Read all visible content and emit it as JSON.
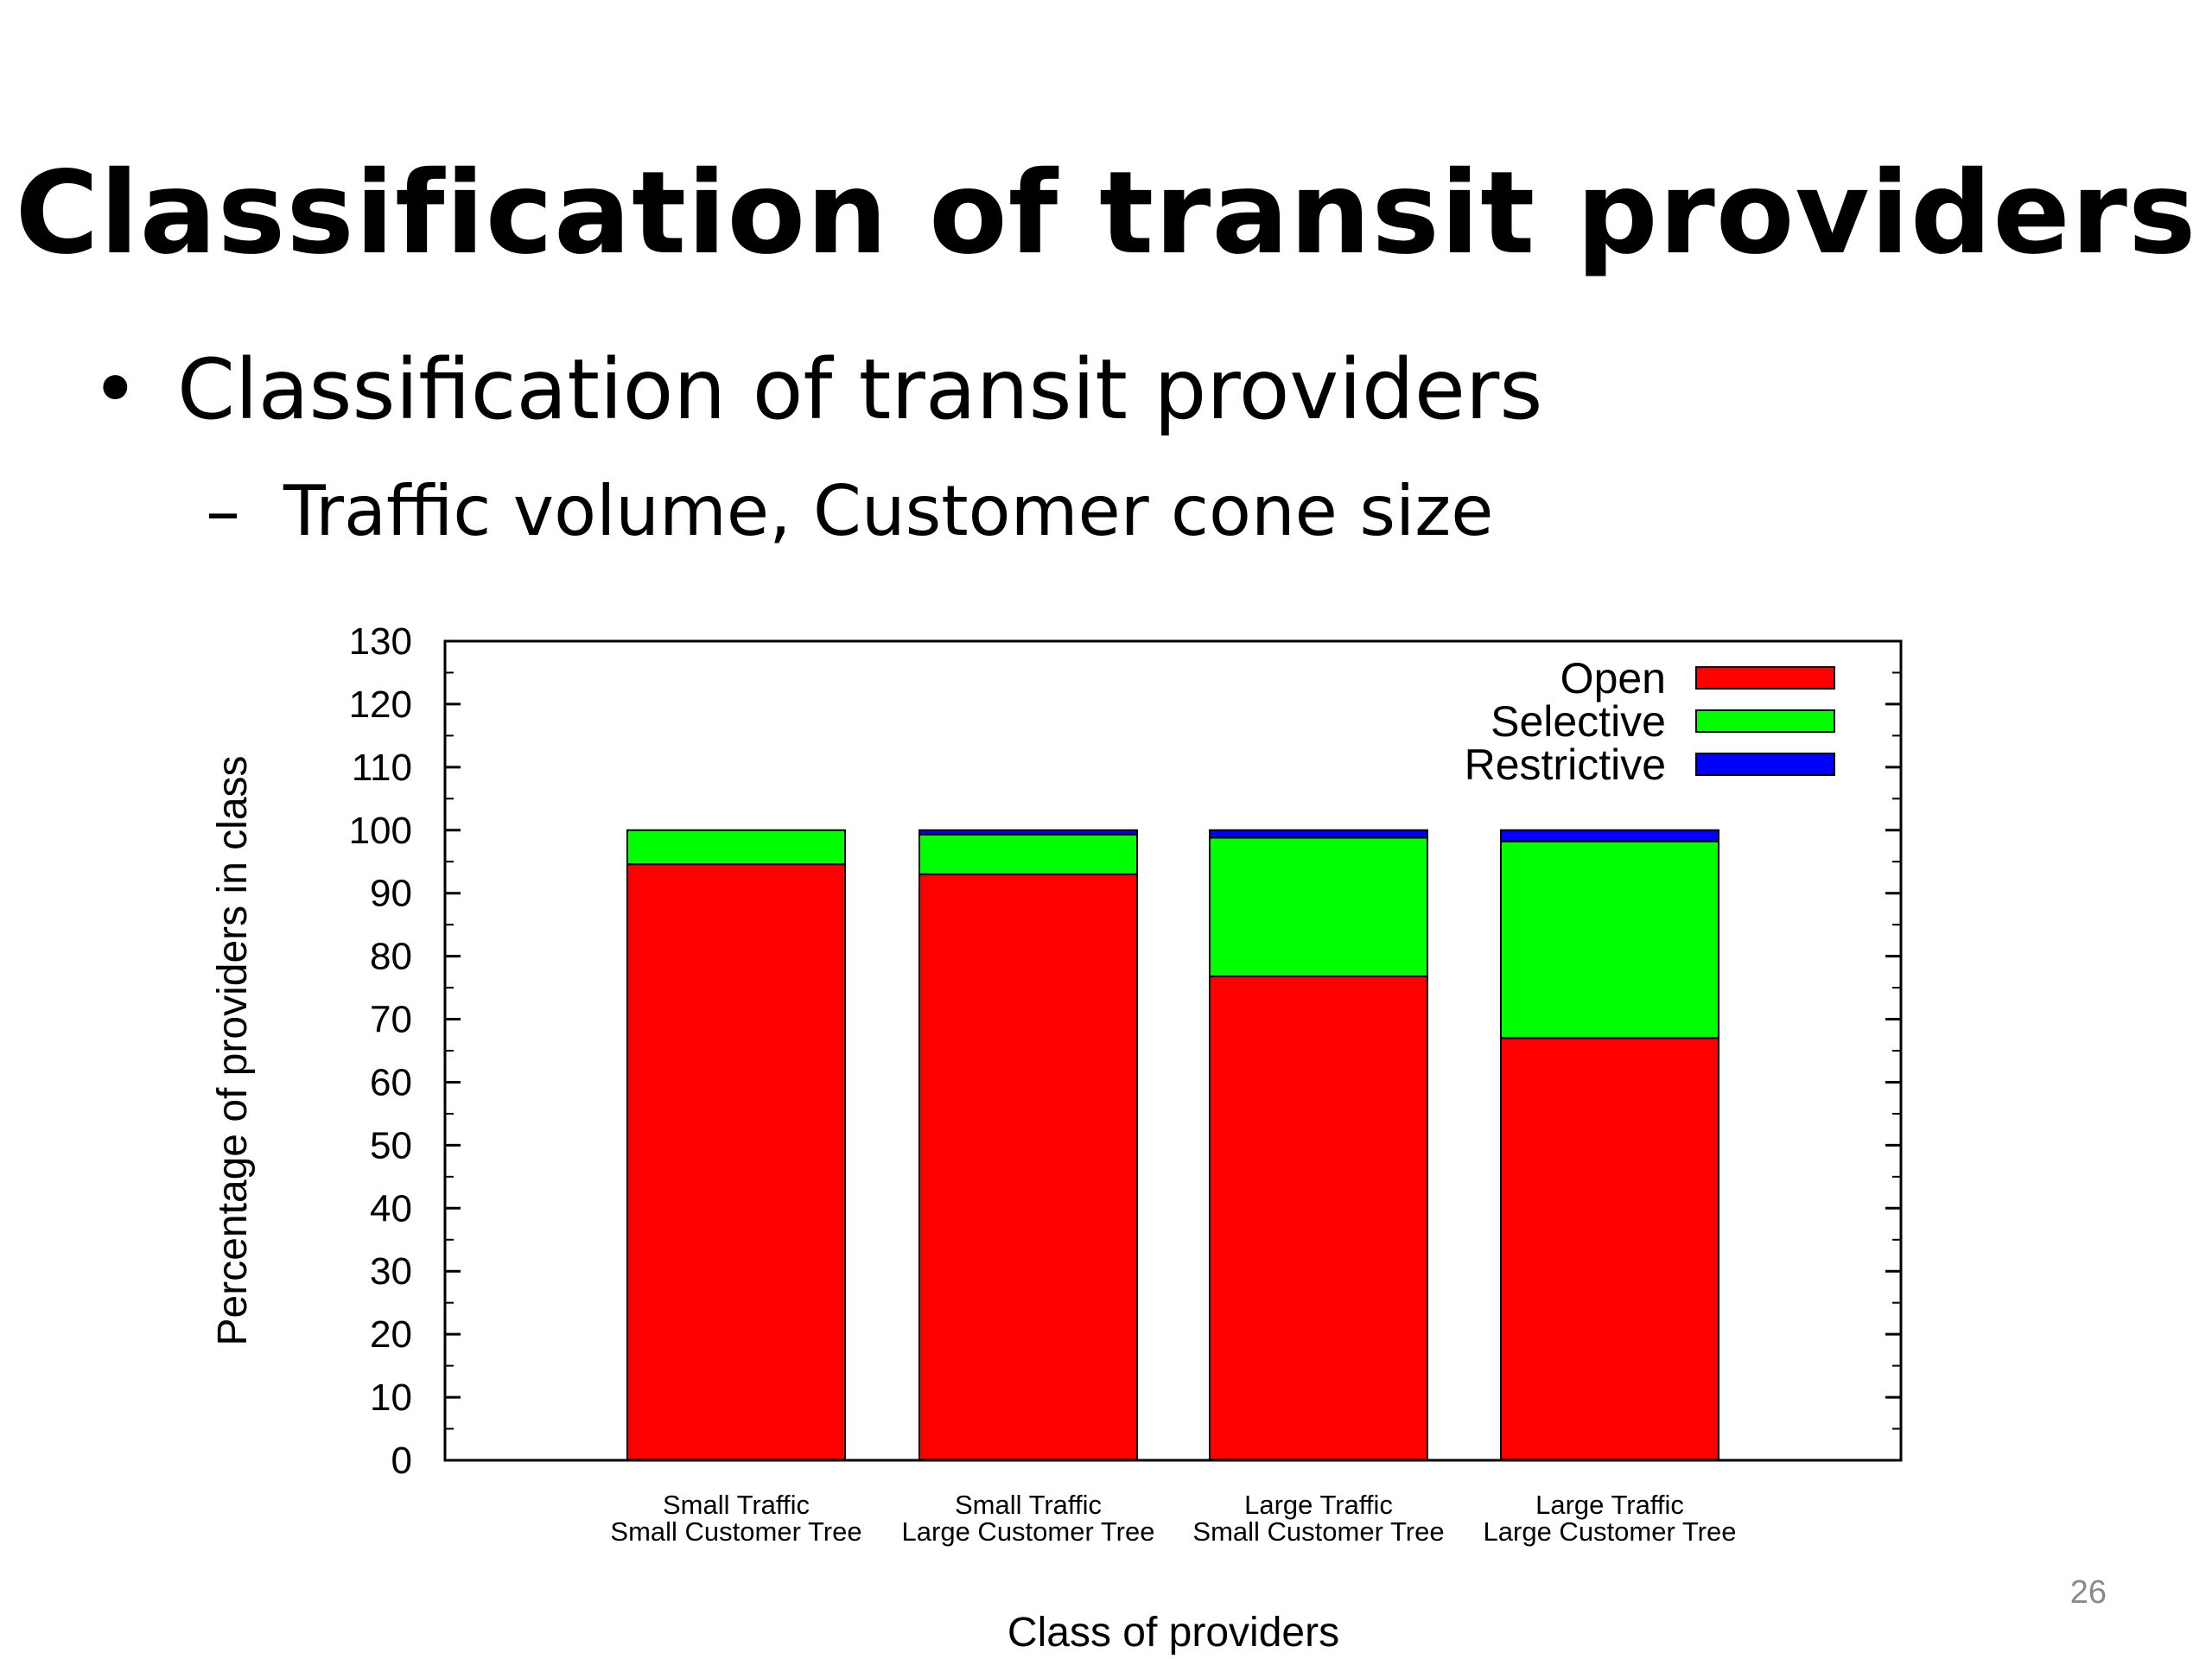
{
  "slide": {
    "title": "Classification of transit providers",
    "bullet_1": "Classification of transit providers",
    "bullet_1_marker": "•",
    "bullet_2": "Traffic volume, Customer cone size",
    "bullet_2_marker": "–",
    "page_number": "26"
  },
  "chart_data": {
    "type": "bar",
    "stacked": true,
    "title": "",
    "xlabel": "Class of providers",
    "ylabel": "Percentage of providers in class",
    "ylim": [
      0,
      130
    ],
    "yticks": [
      0,
      10,
      20,
      30,
      40,
      50,
      60,
      70,
      80,
      90,
      100,
      110,
      120,
      130
    ],
    "grid": false,
    "legend_position": "top-right",
    "categories": [
      [
        "Small Traffic",
        "Small Customer Tree"
      ],
      [
        "Small Traffic",
        "Large Customer Tree"
      ],
      [
        "Large Traffic",
        "Small Customer Tree"
      ],
      [
        "Large Traffic",
        "Large Customer Tree"
      ]
    ],
    "series": [
      {
        "name": "Open",
        "color": "#ff0000",
        "values": [
          94.6,
          93.0,
          76.8,
          67.0
        ]
      },
      {
        "name": "Selective",
        "color": "#00ff00",
        "values": [
          5.4,
          6.3,
          22.0,
          31.2
        ]
      },
      {
        "name": "Restrictive",
        "color": "#0000ff",
        "values": [
          0.0,
          0.7,
          1.2,
          1.8
        ]
      }
    ]
  }
}
